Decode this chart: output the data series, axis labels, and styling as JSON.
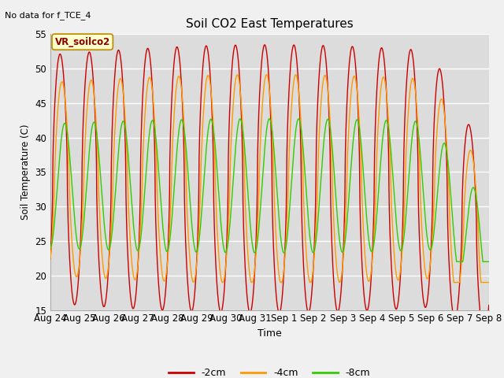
{
  "title": "Soil CO2 East Temperatures",
  "note": "No data for f_TCE_4",
  "annotation": "VR_soilco2",
  "xlabel": "Time",
  "ylabel": "Soil Temperature (C)",
  "ylim": [
    15,
    55
  ],
  "bg_color": "#dcdcdc",
  "fig_color": "#f0f0f0",
  "line_colors": {
    "neg2cm": "#cc0000",
    "neg4cm": "#ff9900",
    "neg8cm": "#33cc00"
  },
  "legend_labels": [
    "-2cm",
    "-4cm",
    "-8cm"
  ],
  "x_tick_labels": [
    "Aug 24",
    "Aug 25",
    "Aug 26",
    "Aug 27",
    "Aug 28",
    "Aug 29",
    "Aug 30",
    "Aug 31",
    "Sep 1",
    "Sep 2",
    "Sep 3",
    "Sep 4",
    "Sep 5",
    "Sep 6",
    "Sep 7",
    "Sep 8"
  ],
  "n_ticks": 16,
  "yticks": [
    15,
    20,
    25,
    30,
    35,
    40,
    45,
    50,
    55
  ]
}
